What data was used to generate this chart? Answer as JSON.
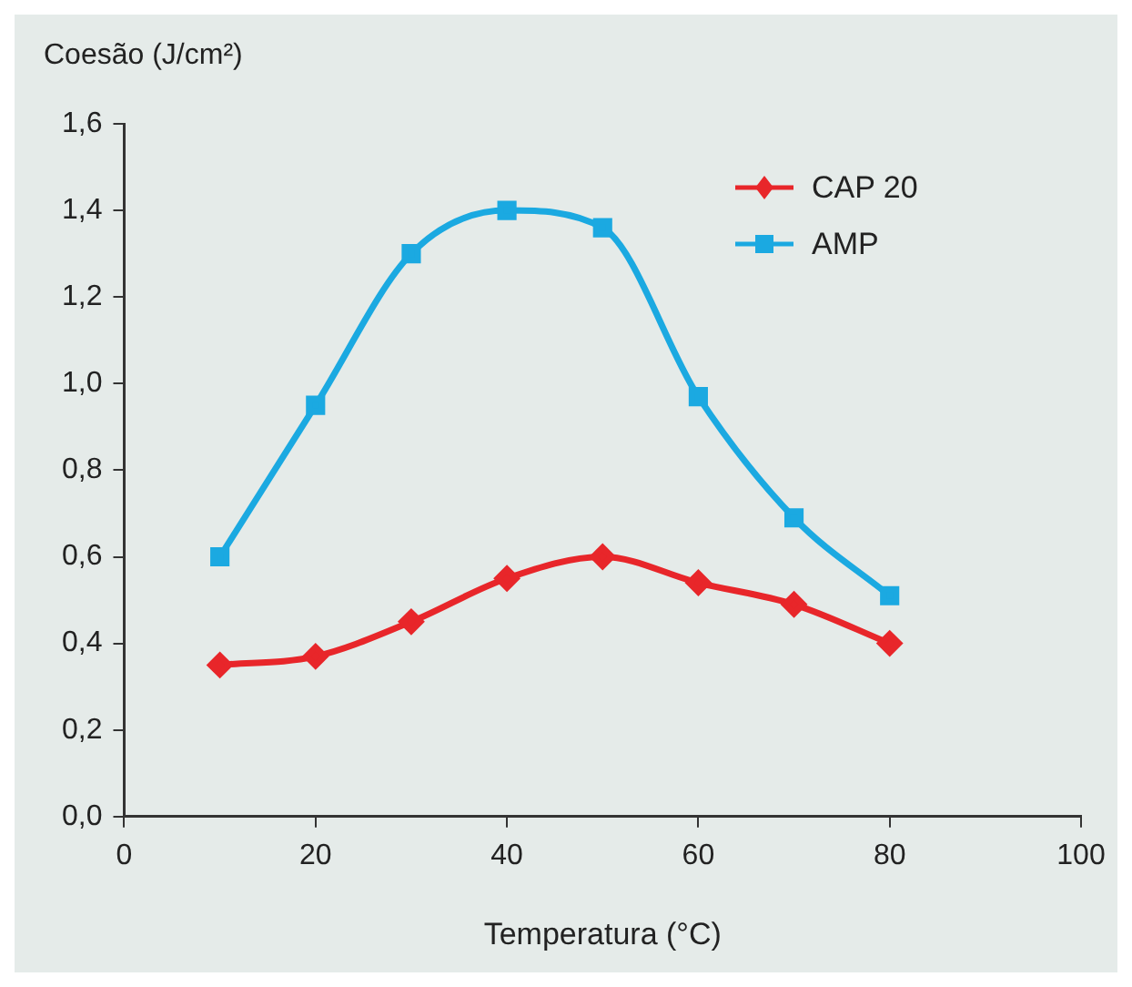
{
  "chart_data": {
    "type": "line",
    "xlabel": "Temperatura (°C)",
    "ylabel": "Coesão (J/cm²)",
    "x": [
      10,
      20,
      30,
      40,
      50,
      60,
      70,
      80
    ],
    "series": [
      {
        "name": "CAP 20",
        "color": "#e8262a",
        "marker": "diamond",
        "values": [
          0.35,
          0.37,
          0.45,
          0.55,
          0.6,
          0.54,
          0.49,
          0.4
        ]
      },
      {
        "name": "AMP",
        "color": "#1ba9e1",
        "marker": "square",
        "values": [
          0.6,
          0.95,
          1.3,
          1.4,
          1.36,
          0.97,
          0.69,
          0.51
        ]
      }
    ],
    "xlim": [
      0,
      100
    ],
    "xticks": [
      0,
      20,
      40,
      60,
      80,
      100
    ],
    "ylim": [
      0,
      1.6
    ],
    "yticks": [
      {
        "value": 0,
        "label": "0,0"
      },
      {
        "value": 0.2,
        "label": "0,2"
      },
      {
        "value": 0.4,
        "label": "0,4"
      },
      {
        "value": 0.6,
        "label": "0,6"
      },
      {
        "value": 0.8,
        "label": "0,8"
      },
      {
        "value": 1.0,
        "label": "1,0"
      },
      {
        "value": 1.2,
        "label": "1,2"
      },
      {
        "value": 1.4,
        "label": "1,4"
      },
      {
        "value": 1.6,
        "label": "1,6"
      }
    ],
    "grid": false,
    "legend": "top right",
    "line_style": "solid"
  }
}
